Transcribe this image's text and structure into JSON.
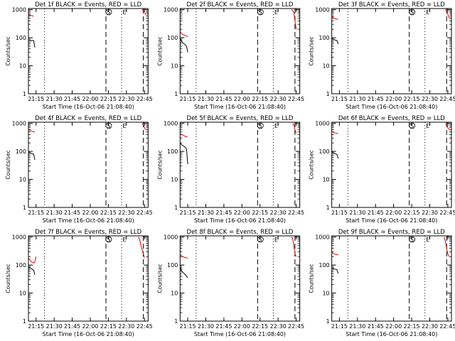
{
  "figure": {
    "panels_title_suffix": "BLACK = Events, RED = LLD",
    "ylabel": "Counts/sec",
    "xlabel": "Start Time (16-Oct-06 21:08:40)",
    "xticks": [
      "21:15",
      "21:30",
      "21:45",
      "22:00",
      "22:15",
      "22:30",
      "22:45"
    ],
    "yticks": [
      "1",
      "10",
      "100",
      "1000"
    ],
    "marker_labels": {
      "S": "S",
      "E": "E"
    },
    "colors": {
      "events": "#000000",
      "lld": "#e00000"
    }
  },
  "chart_data": [
    {
      "type": "line",
      "title": "Det 1f BLACK = Events, RED = LLD",
      "xlabel": "Start Time (16-Oct-06 21:08:40)",
      "ylabel": "Counts/sec",
      "y_scale": "log",
      "ylim": [
        1,
        1100
      ],
      "x_unit": "minutes",
      "xlim": [
        "21:08:40",
        "22:48"
      ],
      "xticks": [
        "21:15",
        "21:30",
        "21:45",
        "22:00",
        "22:15",
        "22:30",
        "22:45"
      ],
      "vlines": [
        {
          "time": "21:22",
          "style": "dotted"
        },
        {
          "time": "22:13",
          "style": "dashed",
          "label": "S"
        },
        {
          "time": "22:26",
          "style": "dotted",
          "label": "E"
        },
        {
          "time": "22:44",
          "style": "dashed"
        }
      ],
      "series": [
        {
          "name": "Events",
          "color": "#000000",
          "x": [
            "21:09",
            "21:10",
            "21:11",
            "21:12",
            "21:13",
            "21:14"
          ],
          "y": [
            80,
            82,
            78,
            80,
            79,
            45
          ]
        },
        {
          "name": "LLD",
          "color": "#e00000",
          "x": [
            "21:09",
            "21:10",
            "21:11",
            "21:12",
            "21:13"
          ],
          "y": [
            650,
            640,
            620,
            600,
            590
          ]
        },
        {
          "name": "LLD",
          "color": "#e00000",
          "x": [
            "22:43",
            "22:44",
            "22:45",
            "22:46"
          ],
          "y": [
            1000,
            900,
            850,
            650
          ]
        }
      ]
    },
    {
      "type": "line",
      "title": "Det 2f BLACK = Events, RED = LLD",
      "xlabel": "Start Time (16-Oct-06 21:08:40)",
      "ylabel": "Counts/sec",
      "y_scale": "log",
      "ylim": [
        1,
        1100
      ],
      "x_unit": "minutes",
      "xlim": [
        "21:08:40",
        "22:48"
      ],
      "xticks": [
        "21:15",
        "21:30",
        "21:45",
        "22:00",
        "22:15",
        "22:30",
        "22:45"
      ],
      "vlines": [
        {
          "time": "21:22",
          "style": "dotted"
        },
        {
          "time": "22:13",
          "style": "dashed",
          "label": "S"
        },
        {
          "time": "22:26",
          "style": "dotted",
          "label": "E"
        },
        {
          "time": "22:44",
          "style": "dashed"
        }
      ],
      "series": [
        {
          "name": "Events",
          "color": "#000000",
          "x": [
            "21:09",
            "21:10",
            "21:11",
            "21:12",
            "21:13",
            "21:14",
            "21:15"
          ],
          "y": [
            90,
            75,
            65,
            60,
            55,
            50,
            30
          ]
        },
        {
          "name": "LLD",
          "color": "#e00000",
          "x": [
            "21:09",
            "21:10",
            "21:11",
            "21:12",
            "21:13",
            "21:14",
            "21:15"
          ],
          "y": [
            160,
            140,
            130,
            125,
            120,
            115,
            110
          ]
        },
        {
          "name": "LLD",
          "color": "#e00000",
          "x": [
            "22:41",
            "22:42",
            "22:43",
            "22:44",
            "22:45"
          ],
          "y": [
            1000,
            950,
            800,
            400,
            200
          ]
        }
      ]
    },
    {
      "type": "line",
      "title": "Det 3f BLACK = Events, RED = LLD",
      "xlabel": "Start Time (16-Oct-06 21:08:40)",
      "ylabel": "Counts/sec",
      "y_scale": "log",
      "ylim": [
        1,
        1100
      ],
      "x_unit": "minutes",
      "xlim": [
        "21:08:40",
        "22:48"
      ],
      "xticks": [
        "21:15",
        "21:30",
        "21:45",
        "22:00",
        "22:15",
        "22:30",
        "22:45"
      ],
      "vlines": [
        {
          "time": "21:22",
          "style": "dotted"
        },
        {
          "time": "22:13",
          "style": "dashed",
          "label": "S"
        },
        {
          "time": "22:26",
          "style": "dotted",
          "label": "E"
        },
        {
          "time": "22:44",
          "style": "dashed"
        }
      ],
      "series": [
        {
          "name": "Events",
          "color": "#000000",
          "x": [
            "21:09",
            "21:10",
            "21:11",
            "21:12",
            "21:13",
            "21:14"
          ],
          "y": [
            95,
            90,
            85,
            80,
            80,
            60
          ]
        },
        {
          "name": "LLD",
          "color": "#e00000",
          "x": [
            "21:09",
            "21:10",
            "21:11",
            "21:12",
            "21:13",
            "21:14"
          ],
          "y": [
            600,
            520,
            480,
            470,
            460,
            450
          ]
        },
        {
          "name": "LLD",
          "color": "#e00000",
          "x": [
            "22:43",
            "22:44",
            "22:45",
            "22:46"
          ],
          "y": [
            1000,
            900,
            700,
            500
          ]
        }
      ]
    },
    {
      "type": "line",
      "title": "Det 4f BLACK = Events, RED = LLD",
      "xlabel": "Start Time (16-Oct-06 21:08:40)",
      "ylabel": "Counts/sec",
      "y_scale": "log",
      "ylim": [
        1,
        1100
      ],
      "x_unit": "minutes",
      "xlim": [
        "21:08:40",
        "22:48"
      ],
      "xticks": [
        "21:15",
        "21:30",
        "21:45",
        "22:00",
        "22:15",
        "22:30",
        "22:45"
      ],
      "vlines": [
        {
          "time": "21:22",
          "style": "dotted"
        },
        {
          "time": "22:13",
          "style": "dashed",
          "label": "S"
        },
        {
          "time": "22:26",
          "style": "dotted",
          "label": "E"
        },
        {
          "time": "22:44",
          "style": "dashed"
        }
      ],
      "series": [
        {
          "name": "Events",
          "color": "#000000",
          "x": [
            "21:09",
            "21:10",
            "21:11",
            "21:12",
            "21:13",
            "21:14"
          ],
          "y": [
            95,
            90,
            85,
            82,
            80,
            50
          ]
        },
        {
          "name": "LLD",
          "color": "#e00000",
          "x": [
            "21:09",
            "21:10",
            "21:11",
            "21:12",
            "21:13",
            "21:14"
          ],
          "y": [
            600,
            560,
            540,
            520,
            500,
            490
          ]
        },
        {
          "name": "LLD",
          "color": "#e00000",
          "x": [
            "22:43",
            "22:44",
            "22:45",
            "22:46"
          ],
          "y": [
            1000,
            900,
            700,
            600
          ]
        }
      ]
    },
    {
      "type": "line",
      "title": "Det 5f BLACK = Events, RED = LLD",
      "xlabel": "Start Time (16-Oct-06 21:08:40)",
      "ylabel": "Counts/sec",
      "y_scale": "log",
      "ylim": [
        1,
        1100
      ],
      "x_unit": "minutes",
      "xlim": [
        "21:08:40",
        "22:48"
      ],
      "xticks": [
        "21:15",
        "21:30",
        "21:45",
        "22:00",
        "22:15",
        "22:30",
        "22:45"
      ],
      "vlines": [
        {
          "time": "21:22",
          "style": "dotted"
        },
        {
          "time": "22:13",
          "style": "dashed",
          "label": "S"
        },
        {
          "time": "22:26",
          "style": "dotted",
          "label": "E"
        },
        {
          "time": "22:44",
          "style": "dashed"
        }
      ],
      "series": [
        {
          "name": "Events",
          "color": "#000000",
          "x": [
            "21:09",
            "21:10",
            "21:11",
            "21:12",
            "21:13",
            "21:14",
            "21:15"
          ],
          "y": [
            190,
            170,
            160,
            150,
            140,
            120,
            35
          ]
        },
        {
          "name": "LLD",
          "color": "#e00000",
          "x": [
            "21:09",
            "21:10",
            "21:11",
            "21:12",
            "21:13",
            "21:14",
            "21:15"
          ],
          "y": [
            420,
            400,
            380,
            360,
            340,
            330,
            320
          ]
        },
        {
          "name": "LLD",
          "color": "#e00000",
          "x": [
            "22:42",
            "22:43",
            "22:44",
            "22:45"
          ],
          "y": [
            1000,
            900,
            600,
            450
          ]
        }
      ]
    },
    {
      "type": "line",
      "title": "Det 6f BLACK = Events, RED = LLD",
      "xlabel": "Start Time (16-Oct-06 21:08:40)",
      "ylabel": "Counts/sec",
      "y_scale": "log",
      "ylim": [
        1,
        1100
      ],
      "x_unit": "minutes",
      "xlim": [
        "21:08:40",
        "22:48"
      ],
      "xticks": [
        "21:15",
        "21:30",
        "21:45",
        "22:00",
        "22:15",
        "22:30",
        "22:45"
      ],
      "vlines": [
        {
          "time": "21:22",
          "style": "dotted"
        },
        {
          "time": "22:13",
          "style": "dashed",
          "label": "S"
        },
        {
          "time": "22:26",
          "style": "dotted",
          "label": "E"
        },
        {
          "time": "22:44",
          "style": "dashed"
        }
      ],
      "series": [
        {
          "name": "Events",
          "color": "#000000",
          "x": [
            "21:09",
            "21:10",
            "21:11",
            "21:12",
            "21:13",
            "21:14"
          ],
          "y": [
            100,
            90,
            85,
            80,
            78,
            55
          ]
        },
        {
          "name": "LLD",
          "color": "#e00000",
          "x": [
            "21:09",
            "21:10",
            "21:11",
            "21:12",
            "21:13",
            "21:14"
          ],
          "y": [
            520,
            480,
            460,
            450,
            440,
            430
          ]
        },
        {
          "name": "LLD",
          "color": "#e00000",
          "x": [
            "22:43",
            "22:44",
            "22:45",
            "22:46"
          ],
          "y": [
            1000,
            900,
            700,
            600
          ]
        }
      ]
    },
    {
      "type": "line",
      "title": "Det 7f BLACK = Events, RED = LLD",
      "xlabel": "Start Time (16-Oct-06 21:08:40)",
      "ylabel": "Counts/sec",
      "y_scale": "log",
      "ylim": [
        1,
        1100
      ],
      "x_unit": "minutes",
      "xlim": [
        "21:08:40",
        "22:48"
      ],
      "xticks": [
        "21:15",
        "21:30",
        "21:45",
        "22:00",
        "22:15",
        "22:30",
        "22:45"
      ],
      "vlines": [
        {
          "time": "21:22",
          "style": "dotted"
        },
        {
          "time": "22:13",
          "style": "dashed",
          "label": "S"
        },
        {
          "time": "22:26",
          "style": "dotted",
          "label": "E"
        },
        {
          "time": "22:44",
          "style": "dashed"
        }
      ],
      "series": [
        {
          "name": "Events",
          "color": "#000000",
          "x": [
            "21:09",
            "21:10",
            "21:11",
            "21:12",
            "21:13",
            "21:14"
          ],
          "y": [
            85,
            80,
            75,
            70,
            65,
            45
          ]
        },
        {
          "name": "LLD",
          "color": "#e00000",
          "x": [
            "21:09",
            "21:10",
            "21:11",
            "21:12",
            "21:13",
            "21:14",
            "21:15"
          ],
          "y": [
            170,
            150,
            130,
            125,
            120,
            130,
            200
          ]
        },
        {
          "name": "LLD",
          "color": "#e00000",
          "x": [
            "22:40",
            "22:41",
            "22:42",
            "22:43",
            "22:44",
            "22:45"
          ],
          "y": [
            1000,
            800,
            500,
            350,
            250,
            180
          ]
        }
      ]
    },
    {
      "type": "line",
      "title": "Det 8f BLACK = Events, RED = LLD",
      "xlabel": "Start Time (16-Oct-06 21:08:40)",
      "ylabel": "Counts/sec",
      "y_scale": "log",
      "ylim": [
        1,
        1100
      ],
      "x_unit": "minutes",
      "xlim": [
        "21:08:40",
        "22:48"
      ],
      "xticks": [
        "21:15",
        "21:30",
        "21:45",
        "22:00",
        "22:15",
        "22:30",
        "22:45"
      ],
      "vlines": [
        {
          "time": "21:22",
          "style": "dotted"
        },
        {
          "time": "22:13",
          "style": "dashed",
          "label": "S"
        },
        {
          "time": "22:26",
          "style": "dotted",
          "label": "E"
        },
        {
          "time": "22:44",
          "style": "dashed"
        }
      ],
      "series": [
        {
          "name": "Events",
          "color": "#000000",
          "x": [
            "21:09",
            "21:10",
            "21:11",
            "21:12",
            "21:13",
            "21:14",
            "21:15"
          ],
          "y": [
            80,
            60,
            55,
            50,
            45,
            40,
            35
          ]
        },
        {
          "name": "LLD",
          "color": "#e00000",
          "x": [
            "21:09",
            "21:10",
            "21:11",
            "21:12",
            "21:13",
            "21:14",
            "21:15"
          ],
          "y": [
            230,
            210,
            200,
            190,
            185,
            180,
            175
          ]
        },
        {
          "name": "LLD",
          "color": "#e00000",
          "x": [
            "22:41",
            "22:42",
            "22:43",
            "22:44",
            "22:45"
          ],
          "y": [
            1000,
            900,
            500,
            250,
            200
          ]
        }
      ]
    },
    {
      "type": "line",
      "title": "Det 9f BLACK = Events, RED = LLD",
      "xlabel": "Start Time (16-Oct-06 21:08:40)",
      "ylabel": "Counts/sec",
      "y_scale": "log",
      "ylim": [
        1,
        1100
      ],
      "x_unit": "minutes",
      "xlim": [
        "21:08:40",
        "22:48"
      ],
      "xticks": [
        "21:15",
        "21:30",
        "21:45",
        "22:00",
        "22:15",
        "22:30",
        "22:45"
      ],
      "vlines": [
        {
          "time": "21:22",
          "style": "dotted"
        },
        {
          "time": "22:13",
          "style": "dashed",
          "label": "S"
        },
        {
          "time": "22:26",
          "style": "dotted",
          "label": "E"
        },
        {
          "time": "22:44",
          "style": "dashed"
        }
      ],
      "series": [
        {
          "name": "Events",
          "color": "#000000",
          "x": [
            "21:09",
            "21:10",
            "21:11",
            "21:12",
            "21:13",
            "21:14"
          ],
          "y": [
            80,
            75,
            72,
            70,
            68,
            50
          ]
        },
        {
          "name": "LLD",
          "color": "#e00000",
          "x": [
            "21:09",
            "21:10",
            "21:11",
            "21:12",
            "21:13",
            "21:14"
          ],
          "y": [
            280,
            260,
            250,
            240,
            235,
            230
          ]
        },
        {
          "name": "LLD",
          "color": "#e00000",
          "x": [
            "22:42",
            "22:43",
            "22:44",
            "22:45",
            "22:46"
          ],
          "y": [
            1000,
            700,
            400,
            250,
            200
          ]
        }
      ]
    }
  ]
}
